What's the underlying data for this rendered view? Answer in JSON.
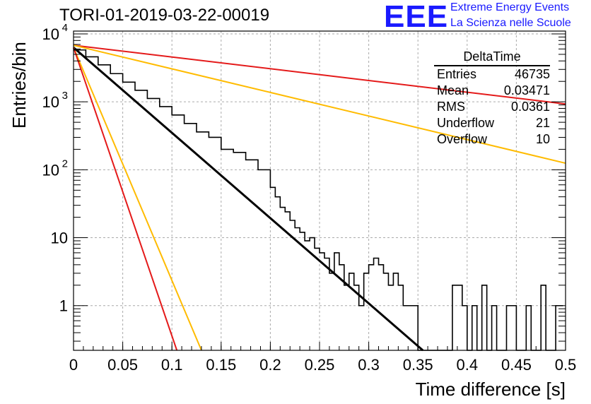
{
  "header": {
    "title": "TORI-01-2019-03-22-00019",
    "logo_text": "EEE",
    "logo_line1": "Extreme Energy Events",
    "logo_line2": "La Scienza nelle Scuole",
    "logo_color": "#1a1aff"
  },
  "stats_box": {
    "name": "DeltaTime",
    "rows": [
      {
        "label": "Entries",
        "value": "46735"
      },
      {
        "label": "Mean",
        "value": "0.03471"
      },
      {
        "label": "RMS",
        "value": "0.0361"
      },
      {
        "label": "Underflow",
        "value": "21"
      },
      {
        "label": "Overflow",
        "value": "10"
      }
    ]
  },
  "chart_data": {
    "type": "line",
    "xlabel": "Time difference [s]",
    "ylabel": "Entries/bin",
    "xlim": [
      0,
      0.5
    ],
    "ylim": [
      0.22,
      11000
    ],
    "y_scale": "log",
    "grid": true,
    "x_ticks": [
      "0",
      "0.05",
      "0.1",
      "0.15",
      "0.2",
      "0.25",
      "0.3",
      "0.35",
      "0.4",
      "0.45",
      "0.5"
    ],
    "y_ticks": [
      {
        "value": 1,
        "label": "1"
      },
      {
        "value": 10,
        "label": "10"
      },
      {
        "value": 100,
        "label": "10",
        "sup": "2"
      },
      {
        "value": 1000,
        "label": "10",
        "sup": "3"
      },
      {
        "value": 10000,
        "label": "10",
        "sup": "4"
      }
    ],
    "histogram": {
      "color": "#000000",
      "bin_width": 0.0025,
      "points": [
        [
          0.0,
          5800
        ],
        [
          0.0125,
          4600
        ],
        [
          0.025,
          3500
        ],
        [
          0.0375,
          2600
        ],
        [
          0.05,
          1950
        ],
        [
          0.0625,
          1480
        ],
        [
          0.075,
          1120
        ],
        [
          0.0875,
          850
        ],
        [
          0.1,
          640
        ],
        [
          0.1125,
          480
        ],
        [
          0.125,
          360
        ],
        [
          0.1375,
          300
        ],
        [
          0.15,
          200
        ],
        [
          0.1625,
          180
        ],
        [
          0.175,
          140
        ],
        [
          0.1875,
          100
        ],
        [
          0.2,
          55
        ],
        [
          0.205,
          40
        ],
        [
          0.21,
          28
        ],
        [
          0.215,
          24
        ],
        [
          0.22,
          18
        ],
        [
          0.225,
          14
        ],
        [
          0.23,
          12
        ],
        [
          0.235,
          9
        ],
        [
          0.24,
          10
        ],
        [
          0.245,
          7
        ],
        [
          0.25,
          6
        ],
        [
          0.255,
          5
        ],
        [
          0.26,
          3
        ],
        [
          0.265,
          6
        ],
        [
          0.27,
          4
        ],
        [
          0.275,
          2
        ],
        [
          0.28,
          3
        ],
        [
          0.285,
          2
        ],
        [
          0.29,
          1
        ],
        [
          0.295,
          3
        ],
        [
          0.3,
          4
        ],
        [
          0.305,
          5
        ],
        [
          0.31,
          4
        ],
        [
          0.315,
          3
        ],
        [
          0.32,
          2
        ],
        [
          0.325,
          3
        ],
        [
          0.33,
          2
        ],
        [
          0.335,
          1
        ],
        [
          0.34,
          1
        ],
        [
          0.345,
          1
        ],
        [
          0.35,
          0.22
        ],
        [
          0.355,
          0.22
        ],
        [
          0.36,
          0.22
        ],
        [
          0.365,
          0.22
        ],
        [
          0.37,
          0.22
        ],
        [
          0.375,
          0.22
        ],
        [
          0.38,
          0.22
        ],
        [
          0.385,
          2
        ],
        [
          0.39,
          2
        ],
        [
          0.395,
          1
        ],
        [
          0.4,
          0.22
        ],
        [
          0.405,
          1
        ],
        [
          0.41,
          0.22
        ],
        [
          0.415,
          2
        ],
        [
          0.42,
          0.22
        ],
        [
          0.425,
          1
        ],
        [
          0.43,
          0.22
        ],
        [
          0.435,
          0.22
        ],
        [
          0.44,
          1
        ],
        [
          0.445,
          1
        ],
        [
          0.45,
          0.22
        ],
        [
          0.455,
          0.22
        ],
        [
          0.46,
          1
        ],
        [
          0.465,
          0.22
        ],
        [
          0.47,
          0.22
        ],
        [
          0.475,
          2
        ],
        [
          0.48,
          0.22
        ],
        [
          0.485,
          0.22
        ],
        [
          0.49,
          1
        ],
        [
          0.495,
          1
        ]
      ]
    },
    "series": [
      {
        "color": "#000000",
        "from": [
          0.0,
          6300
        ],
        "to": [
          0.355,
          0.22
        ]
      },
      {
        "color": "#e41a1a",
        "from": [
          0.0,
          6800
        ],
        "to": [
          0.5,
          930
        ]
      },
      {
        "color": "#ffbb00",
        "from": [
          0.0,
          6800
        ],
        "to": [
          0.5,
          125
        ]
      },
      {
        "color": "#ffbb00",
        "from": [
          0.0,
          6300
        ],
        "to": [
          0.13,
          0.22
        ]
      },
      {
        "color": "#e41a1a",
        "from": [
          0.0,
          6300
        ],
        "to": [
          0.105,
          0.22
        ]
      }
    ]
  }
}
